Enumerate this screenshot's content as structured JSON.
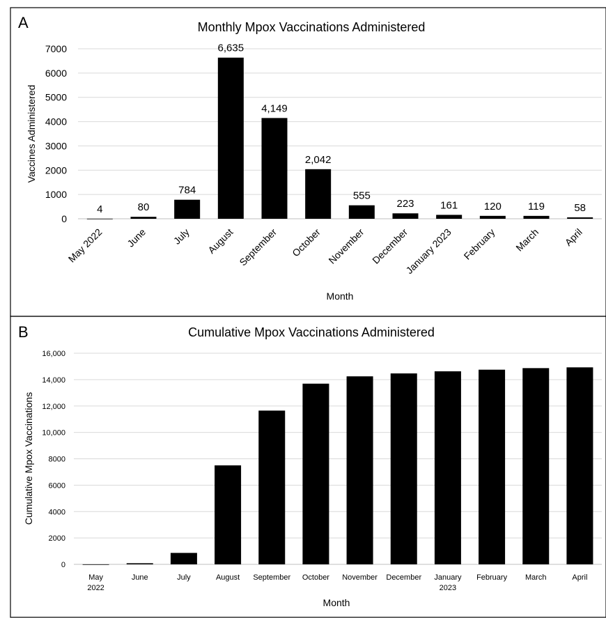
{
  "chart_data": [
    {
      "panel": "A",
      "type": "bar",
      "title": "Monthly Mpox Vaccinations Administered",
      "xlabel": "Month",
      "ylabel": "Vaccines Administered",
      "categories": [
        "May 2022",
        "June",
        "July",
        "August",
        "September",
        "October",
        "November",
        "December",
        "January 2023",
        "February",
        "March",
        "April"
      ],
      "values": [
        4,
        80,
        784,
        6635,
        4149,
        2042,
        555,
        223,
        161,
        120,
        119,
        58
      ],
      "data_labels": [
        "4",
        "80",
        "784",
        "6,635",
        "4,149",
        "2,042",
        "555",
        "223",
        "161",
        "120",
        "119",
        "58"
      ],
      "ylim": [
        0,
        7000
      ],
      "yticks": [
        0,
        1000,
        2000,
        3000,
        4000,
        5000,
        6000,
        7000
      ],
      "ytick_labels": [
        "0",
        "1000",
        "2000",
        "3000",
        "4000",
        "5000",
        "6000",
        "7000"
      ],
      "grid": true,
      "bar_color": "#000000"
    },
    {
      "panel": "B",
      "type": "bar",
      "title": "Cumulative Mpox Vaccinations Administered",
      "xlabel": "Month",
      "ylabel": "Cumulative Mpox Vaccinations",
      "categories": [
        "May 2022",
        "June",
        "July",
        "August",
        "September",
        "October",
        "November",
        "December",
        "January 2023",
        "February",
        "March",
        "April"
      ],
      "category_lines": [
        [
          "May",
          "2022"
        ],
        [
          "June"
        ],
        [
          "July"
        ],
        [
          "August"
        ],
        [
          "September"
        ],
        [
          "October"
        ],
        [
          "November"
        ],
        [
          "December"
        ],
        [
          "January",
          "2023"
        ],
        [
          "February"
        ],
        [
          "March"
        ],
        [
          "April"
        ]
      ],
      "values": [
        4,
        84,
        868,
        7503,
        11652,
        13694,
        14249,
        14472,
        14633,
        14753,
        14872,
        14930
      ],
      "ylim": [
        0,
        16000
      ],
      "yticks": [
        0,
        2000,
        4000,
        6000,
        8000,
        10000,
        12000,
        14000,
        16000
      ],
      "ytick_labels": [
        "0",
        "2000",
        "4000",
        "6000",
        "8000",
        "10,000",
        "12,000",
        "14,000",
        "16,000"
      ],
      "grid": true,
      "bar_color": "#000000"
    }
  ]
}
